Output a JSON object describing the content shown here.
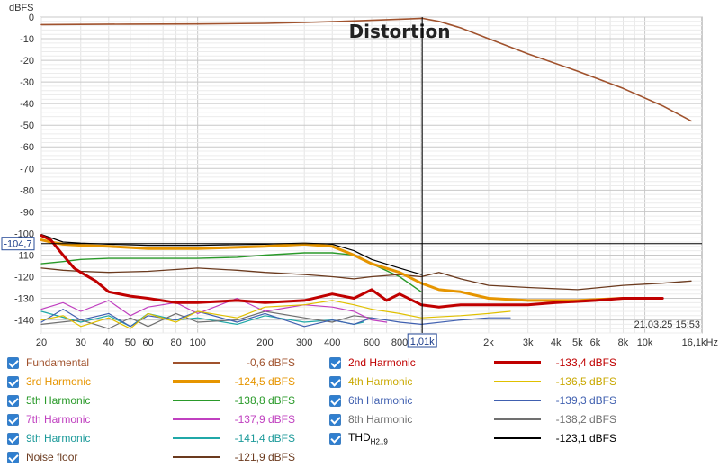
{
  "chart_data": {
    "type": "line",
    "title": "Distortion",
    "ylabel": "dBFS",
    "xscale": "log",
    "xlim": [
      20,
      18000
    ],
    "ylim": [
      -146,
      0
    ],
    "yticks": [
      0,
      -10,
      -20,
      -30,
      -40,
      -50,
      -60,
      -70,
      -80,
      -90,
      -100,
      -110,
      -120,
      -130,
      -140
    ],
    "ytick_labels": [
      "0",
      "-10",
      "-20",
      "-30",
      "-40",
      "-50",
      "-60",
      "-70",
      "-80",
      "-90",
      "-100",
      "-110",
      "-120",
      "-130",
      "-140"
    ],
    "xticks": [
      20,
      30,
      40,
      50,
      60,
      80,
      100,
      200,
      300,
      400,
      600,
      800,
      2000,
      3000,
      4000,
      5000,
      6000,
      8000,
      10000
    ],
    "xtick_labels": [
      "20",
      "30",
      "40",
      "50",
      "60",
      "80",
      "100",
      "200",
      "300",
      "400",
      "600",
      "800",
      "2k",
      "3k",
      "4k",
      "5k",
      "6k",
      "8k",
      "10k"
    ],
    "xlast_label": "16,1kHz",
    "cursor": {
      "x": 1010,
      "y": -104.7,
      "x_label": "1,01k",
      "y_label": "-104,7"
    },
    "timestamp": "21.03.25 15:53",
    "grid": true,
    "series": [
      {
        "name": "Fundamental",
        "color": "#a0522d",
        "width": 1.6,
        "x": [
          20,
          50,
          100,
          200,
          300,
          500,
          700,
          900,
          1010,
          1200,
          1500,
          2000,
          3000,
          5000,
          8000,
          12000,
          16100
        ],
        "y": [
          -3.5,
          -3.3,
          -3.2,
          -2.9,
          -2.5,
          -1.8,
          -1.2,
          -0.8,
          -0.6,
          -2,
          -5,
          -10,
          -17,
          -25,
          -33,
          -41,
          -48
        ]
      },
      {
        "name": "2nd Harmonic",
        "color": "#c00000",
        "width": 3,
        "x": [
          20,
          22,
          25,
          28,
          30,
          35,
          40,
          50,
          60,
          80,
          100,
          150,
          200,
          300,
          400,
          500,
          600,
          700,
          800,
          1000,
          1200,
          1500,
          2000,
          3000,
          4000,
          6000,
          8000,
          10000,
          12000
        ],
        "y": [
          -101,
          -103,
          -110,
          -116,
          -118,
          -122,
          -127,
          -129,
          -130,
          -132,
          -132,
          -131,
          -132,
          -131,
          -128,
          -130,
          -126,
          -131,
          -128,
          -133,
          -134,
          -133,
          -133,
          -133,
          -132,
          -131,
          -130,
          -130,
          -130
        ]
      },
      {
        "name": "3rd Harmonic",
        "color": "#e69500",
        "width": 3,
        "x": [
          20,
          22,
          25,
          30,
          40,
          60,
          100,
          200,
          300,
          400,
          500,
          600,
          800,
          1000,
          1200,
          1500,
          2000,
          3000,
          5000,
          8000
        ],
        "y": [
          -103,
          -104,
          -105,
          -105.5,
          -106,
          -107,
          -107,
          -106,
          -105,
          -106,
          -110,
          -114,
          -118,
          -123,
          -126,
          -127,
          -130,
          -131,
          -131,
          -130
        ]
      },
      {
        "name": "4th Harmonic",
        "color": "#e0c000",
        "width": 1.2,
        "x": [
          20,
          25,
          30,
          40,
          50,
          60,
          80,
          100,
          150,
          200,
          300,
          400,
          500,
          600,
          800,
          1000,
          1500,
          2000,
          2500
        ],
        "y": [
          -140,
          -138,
          -143,
          -139,
          -144,
          -137,
          -141,
          -136,
          -139,
          -134,
          -133,
          -131,
          -133,
          -135,
          -137,
          -139,
          -138,
          -137,
          -136
        ]
      },
      {
        "name": "5th Harmonic",
        "color": "#2a9a2a",
        "width": 1.4,
        "x": [
          20,
          25,
          30,
          40,
          60,
          100,
          150,
          200,
          300,
          400,
          500,
          600,
          800,
          1000
        ],
        "y": [
          -114,
          -113,
          -112,
          -111.5,
          -111.5,
          -111.5,
          -111,
          -110,
          -109,
          -109,
          -110,
          -114,
          -120,
          -127
        ]
      },
      {
        "name": "6th Harmonic",
        "color": "#4060b0",
        "width": 1.2,
        "x": [
          20,
          25,
          30,
          40,
          50,
          60,
          80,
          100,
          150,
          200,
          300,
          400,
          500,
          600,
          800,
          1000,
          1500,
          2000,
          2500
        ],
        "y": [
          -141,
          -135,
          -140,
          -137,
          -143,
          -138,
          -140,
          -136,
          -141,
          -137,
          -143,
          -140,
          -142,
          -139,
          -141,
          -142,
          -140,
          -139,
          -139
        ]
      },
      {
        "name": "7th Harmonic",
        "color": "#c040c0",
        "width": 1.2,
        "x": [
          20,
          25,
          30,
          40,
          50,
          60,
          80,
          100,
          150,
          200,
          300,
          400,
          500,
          600,
          700
        ],
        "y": [
          -135,
          -132,
          -136,
          -131,
          -138,
          -134,
          -132,
          -137,
          -130,
          -136,
          -133,
          -134,
          -136,
          -140,
          -141
        ]
      },
      {
        "name": "8th Harmonic",
        "color": "#707070",
        "width": 1.2,
        "x": [
          20,
          30,
          40,
          50,
          60,
          80,
          100,
          150,
          200,
          300,
          400,
          500,
          600
        ],
        "y": [
          -142,
          -140,
          -144,
          -139,
          -143,
          -137,
          -141,
          -140,
          -136,
          -139,
          -141,
          -138,
          -139
        ]
      },
      {
        "name": "9th Harmonic",
        "color": "#20a8a8",
        "width": 1.2,
        "x": [
          20,
          30,
          40,
          50,
          60,
          80,
          100,
          150,
          200,
          300,
          400,
          500,
          550
        ],
        "y": [
          -136,
          -141,
          -138,
          -143,
          -137,
          -140,
          -139,
          -142,
          -138,
          -141,
          -140,
          -142,
          -141
        ]
      },
      {
        "name": "THD",
        "color": "#000000",
        "width": 1.2,
        "x": [
          20,
          22,
          25,
          30,
          40,
          60,
          100,
          200,
          300,
          400,
          500,
          600,
          800,
          1000
        ],
        "y": [
          -100.5,
          -102,
          -104,
          -104.5,
          -105,
          -105.5,
          -105.5,
          -105,
          -104.5,
          -105,
          -108,
          -112,
          -116,
          -119
        ]
      },
      {
        "name": "Noise floor",
        "color": "#6b3a1e",
        "width": 1.3,
        "x": [
          20,
          25,
          30,
          40,
          60,
          100,
          150,
          200,
          300,
          400,
          500,
          600,
          800,
          1000,
          1200,
          1500,
          2000,
          3000,
          5000,
          8000,
          12000,
          16100
        ],
        "y": [
          -116,
          -117,
          -117.5,
          -118,
          -117.5,
          -116,
          -117,
          -118,
          -119,
          -120,
          -121,
          -120,
          -119,
          -120,
          -118,
          -121,
          -124,
          -125,
          -126,
          -124,
          -123,
          -122
        ]
      }
    ]
  },
  "legend": [
    {
      "name": "Fundamental",
      "sub": "",
      "value": "-0,6 dBFS",
      "color": "#a0522d",
      "width": 2,
      "text_color": "#a0522d"
    },
    {
      "name": "2nd Harmonic",
      "sub": "",
      "value": "-133,4 dBFS",
      "color": "#c00000",
      "width": 4,
      "text_color": "#c00000"
    },
    {
      "name": "3rd Harmonic",
      "sub": "",
      "value": "-124,5 dBFS",
      "color": "#e69500",
      "width": 4,
      "text_color": "#e69500"
    },
    {
      "name": "4th Harmonic",
      "sub": "",
      "value": "-136,5 dBFS",
      "color": "#e0c000",
      "width": 2,
      "text_color": "#c9a800"
    },
    {
      "name": "5th Harmonic",
      "sub": "",
      "value": "-138,8 dBFS",
      "color": "#2a9a2a",
      "width": 2,
      "text_color": "#2a9a2a"
    },
    {
      "name": "6th Harmonic",
      "sub": "",
      "value": "-139,3 dBFS",
      "color": "#4060b0",
      "width": 2,
      "text_color": "#4060b0"
    },
    {
      "name": "7th Harmonic",
      "sub": "",
      "value": "-137,9 dBFS",
      "color": "#c040c0",
      "width": 2,
      "text_color": "#c040c0"
    },
    {
      "name": "8th Harmonic",
      "sub": "",
      "value": "-138,2 dBFS",
      "color": "#707070",
      "width": 2,
      "text_color": "#707070"
    },
    {
      "name": "9th Harmonic",
      "sub": "",
      "value": "-141,4 dBFS",
      "color": "#20a8a8",
      "width": 2,
      "text_color": "#1c9a9a"
    },
    {
      "name": "THD",
      "sub": "H2..9",
      "value": "-123,1 dBFS",
      "color": "#000000",
      "width": 2,
      "text_color": "#000000"
    },
    {
      "name": "Noise floor",
      "sub": "",
      "value": "-121,9 dBFS",
      "color": "#6b3a1e",
      "width": 2,
      "text_color": "#6b3a1e"
    }
  ]
}
